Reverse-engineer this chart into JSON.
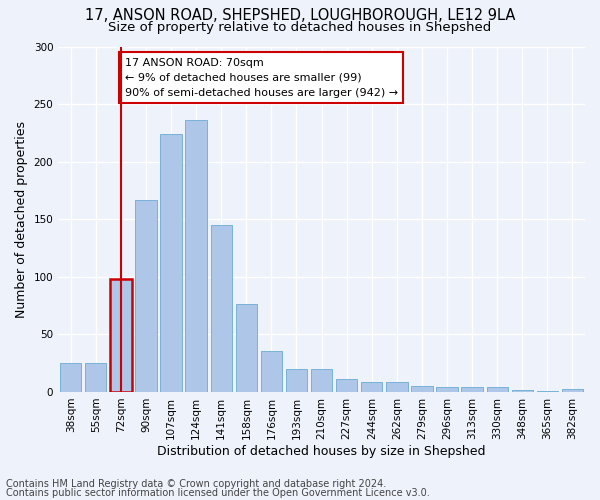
{
  "title_line1": "17, ANSON ROAD, SHEPSHED, LOUGHBOROUGH, LE12 9LA",
  "title_line2": "Size of property relative to detached houses in Shepshed",
  "xlabel": "Distribution of detached houses by size in Shepshed",
  "ylabel": "Number of detached properties",
  "footer_line1": "Contains HM Land Registry data © Crown copyright and database right 2024.",
  "footer_line2": "Contains public sector information licensed under the Open Government Licence v3.0.",
  "categories": [
    "38sqm",
    "55sqm",
    "72sqm",
    "90sqm",
    "107sqm",
    "124sqm",
    "141sqm",
    "158sqm",
    "176sqm",
    "193sqm",
    "210sqm",
    "227sqm",
    "244sqm",
    "262sqm",
    "279sqm",
    "296sqm",
    "313sqm",
    "330sqm",
    "348sqm",
    "365sqm",
    "382sqm"
  ],
  "values": [
    25,
    25,
    98,
    167,
    224,
    236,
    145,
    76,
    36,
    20,
    20,
    11,
    9,
    9,
    5,
    4,
    4,
    4,
    2,
    1,
    3
  ],
  "bar_color": "#aec6e8",
  "bar_edge_color": "#6aaad4",
  "highlight_index": 2,
  "highlight_color": "#cc0000",
  "annotation_text": "17 ANSON ROAD: 70sqm\n← 9% of detached houses are smaller (99)\n90% of semi-detached houses are larger (942) →",
  "annotation_box_color": "#ffffff",
  "annotation_border_color": "#cc0000",
  "ylim": [
    0,
    300
  ],
  "yticks": [
    0,
    50,
    100,
    150,
    200,
    250,
    300
  ],
  "background_color": "#eef2fb",
  "grid_color": "#ffffff",
  "title_fontsize": 10.5,
  "subtitle_fontsize": 9.5,
  "axis_label_fontsize": 9,
  "tick_fontsize": 7.5,
  "footer_fontsize": 7
}
